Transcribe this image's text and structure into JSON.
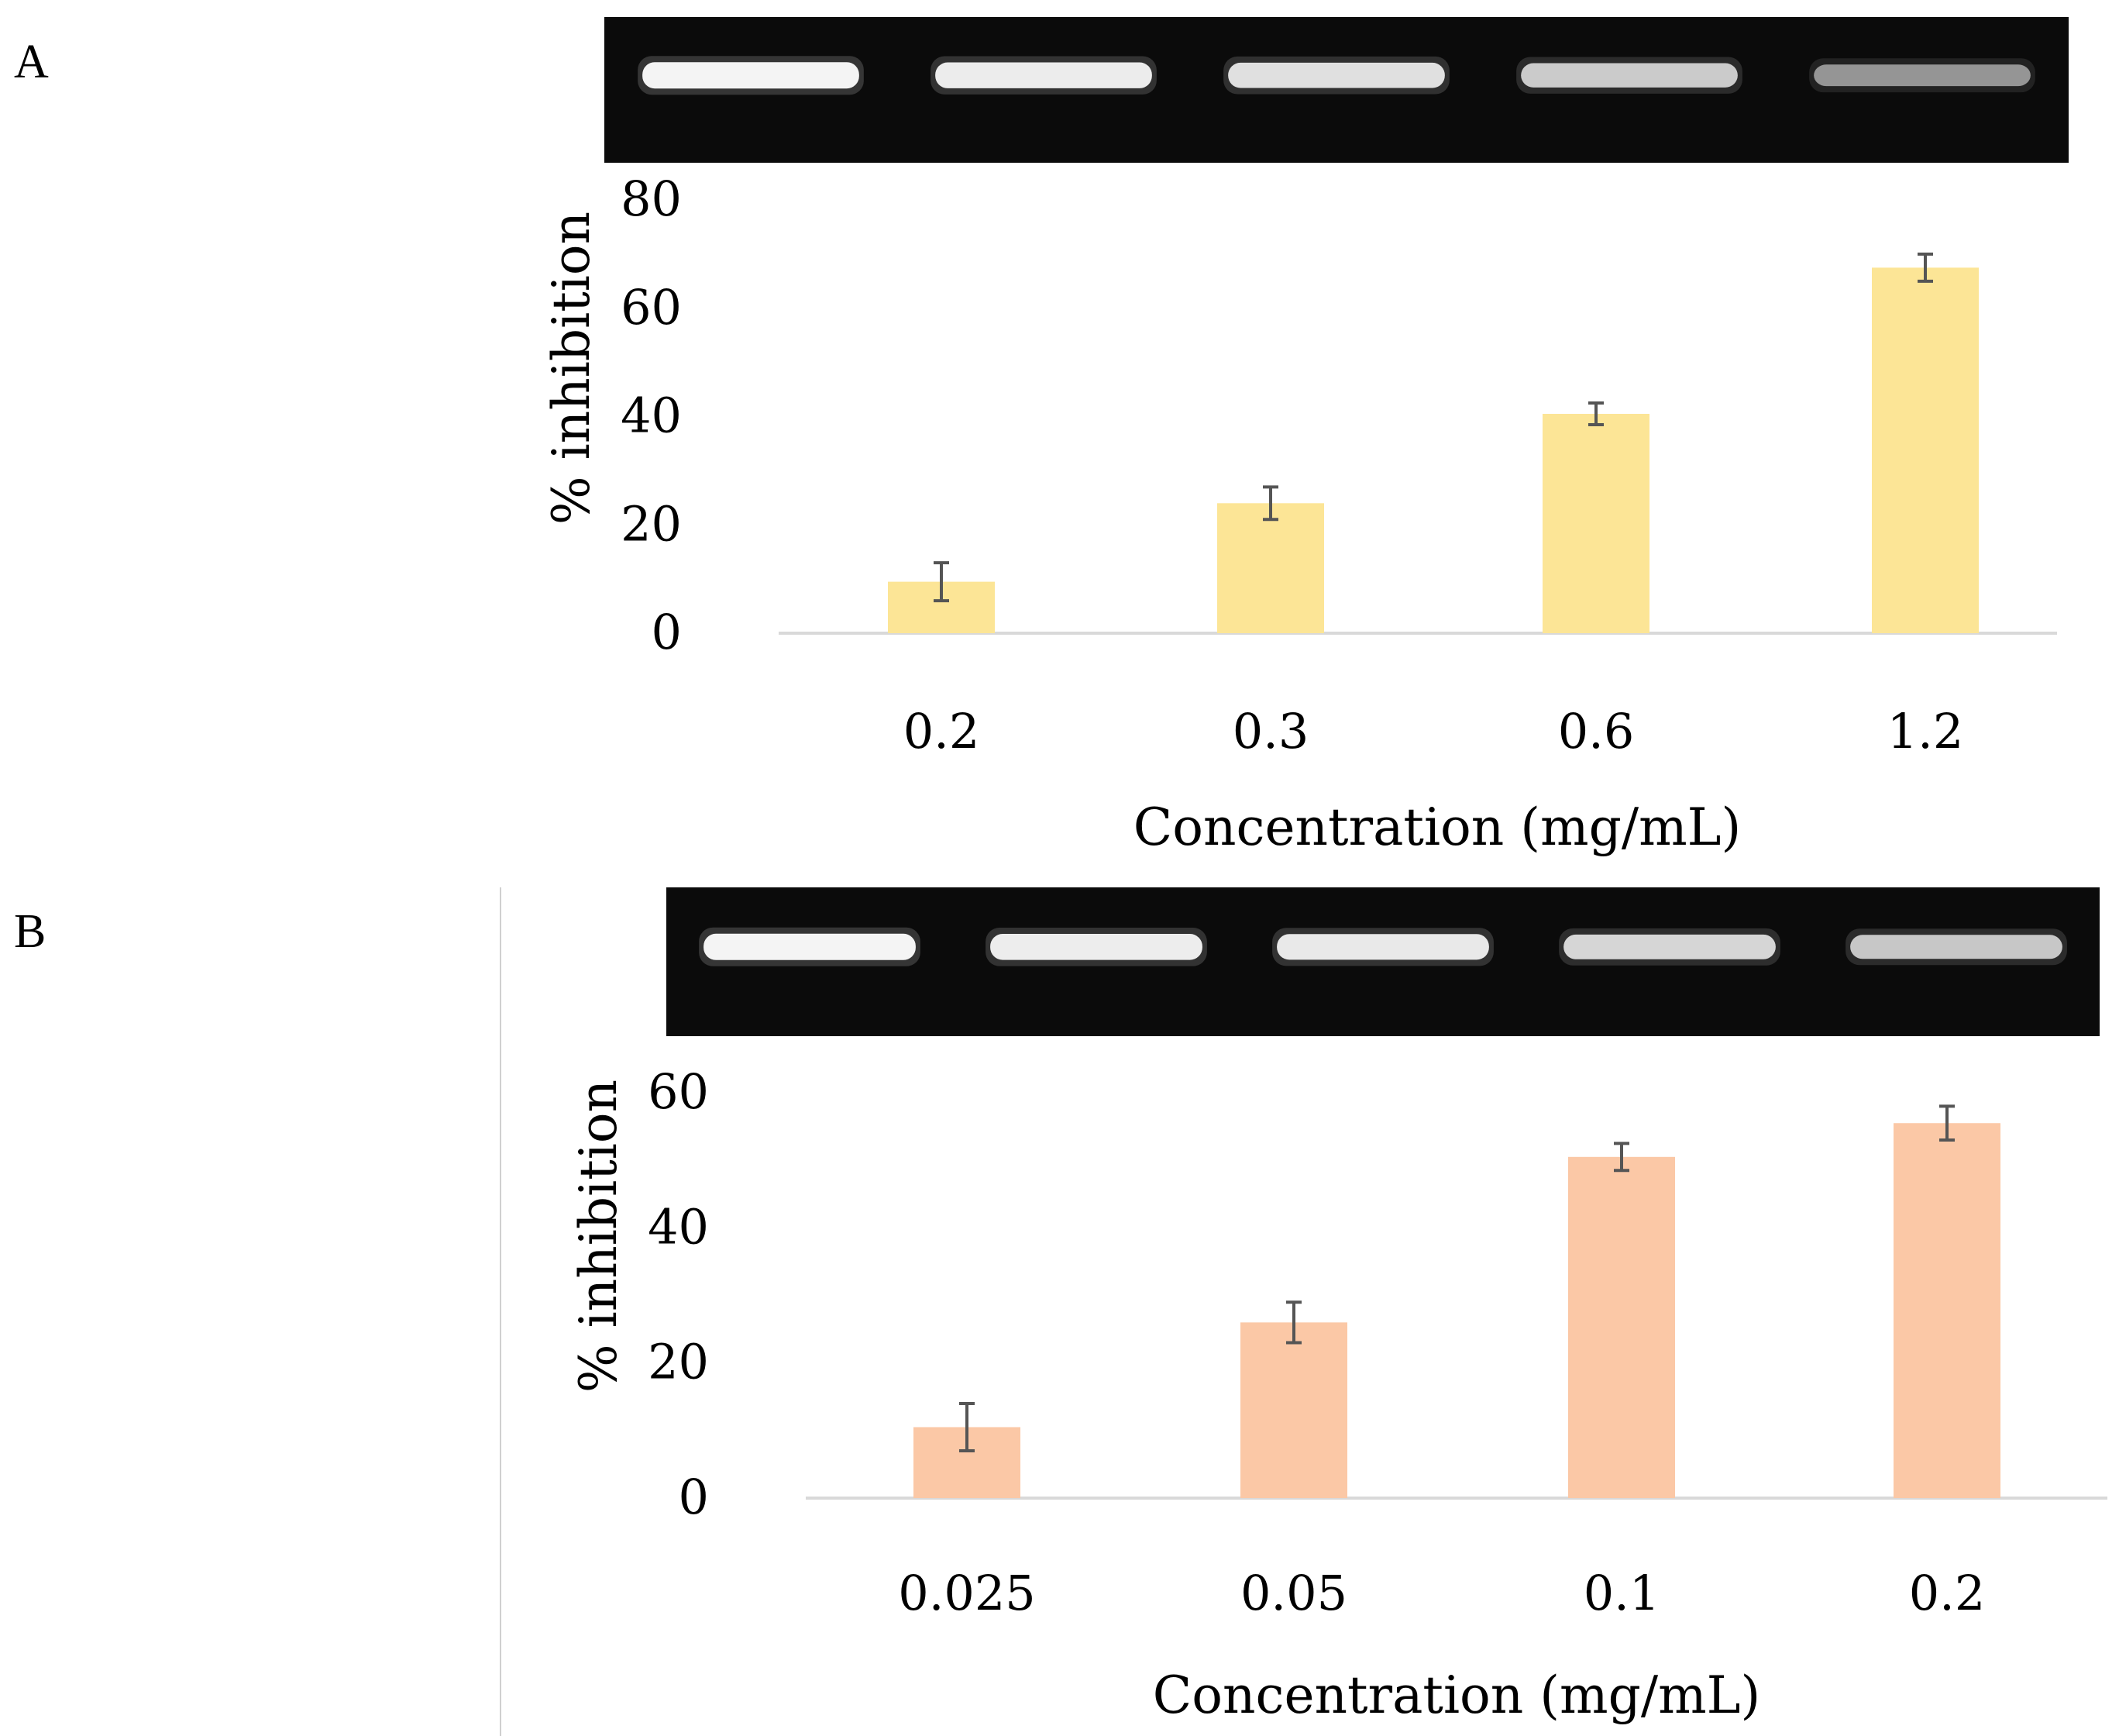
{
  "colors": {
    "gel_background": "#0b0b0b",
    "band": "#f4f4f4",
    "baseline": "#d9d9d9",
    "error_bar": "#555555",
    "text": "#000000"
  },
  "chart_data": [
    {
      "panel": "A",
      "type": "bar",
      "categories": [
        "0.2",
        "0.3",
        "0.6",
        "1.2"
      ],
      "values": [
        9.5,
        24,
        40.5,
        67.5
      ],
      "errors": [
        3.5,
        3,
        2,
        2.5
      ],
      "color": "#fce596",
      "xlabel": "Concentration (mg/mL)",
      "ylabel": "% inhibition",
      "ylim": [
        0,
        80
      ],
      "yticks": [
        "0",
        "20",
        "40",
        "60",
        "80"
      ],
      "grid": false,
      "gel_lanes": [
        1.0,
        0.96,
        0.9,
        0.8,
        0.55
      ]
    },
    {
      "panel": "B",
      "type": "bar",
      "categories": [
        "0.025",
        "0.05",
        "0.1",
        "0.2"
      ],
      "values": [
        10.5,
        26,
        50.5,
        55.5
      ],
      "errors": [
        3.5,
        3,
        2,
        2.5
      ],
      "color": "#fbc8a6",
      "xlabel": "Concentration (mg/mL)",
      "ylabel": "% inhibition",
      "ylim": [
        0,
        60
      ],
      "yticks": [
        "0",
        "20",
        "40",
        "60"
      ],
      "grid": false,
      "gel_lanes": [
        1.0,
        0.97,
        0.94,
        0.85,
        0.78
      ]
    }
  ]
}
